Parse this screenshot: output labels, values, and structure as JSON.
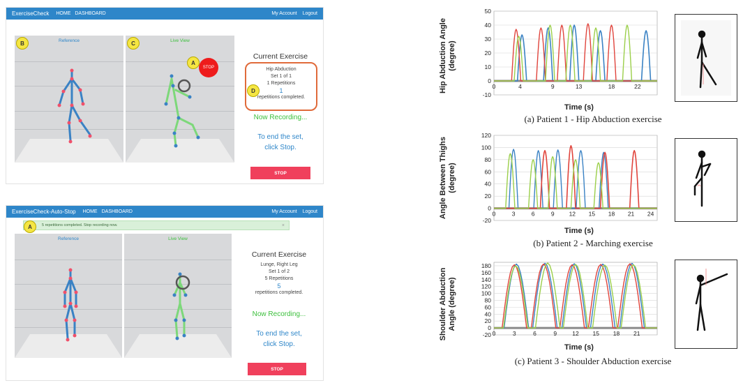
{
  "top_app": {
    "brand": "ExerciseCheck",
    "nav": [
      "HOME",
      "DASHBOARD"
    ],
    "right": [
      "My Account",
      "Logout"
    ],
    "panel_b_badge": "B",
    "panel_c_badge": "C",
    "reference_title": "Reference",
    "live_title": "Live View",
    "stop_circle_badge": "A",
    "stop_circle_label": "STOP",
    "info_badge": "D",
    "current_exercise": "Current Exercise",
    "exercise_name": "Hip Abduction",
    "set_text": "Set 1 of 1",
    "reps_text": "1 Repetitions",
    "count": "1",
    "completed_text": "repetitions completed.",
    "recording": "Now Recording...",
    "end_line1": "To end the set,",
    "end_line2": "click Stop.",
    "stop_button": "STOP"
  },
  "bottom_app": {
    "brand": "ExerciseCheck-Auto-Stop",
    "nav": [
      "HOME",
      "DASHBOARD"
    ],
    "right": [
      "My Account",
      "Logout"
    ],
    "alert_badge": "A",
    "alert_text": "5 repetitions completed. Stop recording now.",
    "alert_close": "×",
    "reference_title": "Reference",
    "live_title": "Live View",
    "current_exercise": "Current Exercise",
    "exercise_name": "Lunge, Right Leg",
    "set_text": "Set 1 of 2",
    "reps_text": "5 Repetitions",
    "count": "5",
    "completed_text": "repetitions completed.",
    "recording": "Now Recording...",
    "end_line1": "To end the set,",
    "end_line2": "click Stop.",
    "stop_button": "STOP"
  },
  "colors": {
    "blue": "#3a82c4",
    "red": "#e0443c",
    "green": "#9bcf4a"
  },
  "chart_data": [
    {
      "type": "line",
      "ylabel_line1": "Hip Abduction Angle",
      "ylabel_line2": "(degree)",
      "xlabel": "Time (s)",
      "caption": "(a) Patient 1 - Hip Abduction exercise",
      "ylim": [
        -10,
        50
      ],
      "yticks": [
        -10,
        0,
        10,
        20,
        30,
        40,
        50
      ],
      "xlim": [
        0,
        25
      ],
      "xticks": [
        0,
        4,
        9,
        13,
        18,
        22
      ],
      "grid": true,
      "series": [
        {
          "color": "#3a82c4",
          "peaks": [
            [
              4.3,
              33
            ],
            [
              8.3,
              38
            ],
            [
              12.3,
              40
            ],
            [
              16.3,
              36
            ],
            [
              23.3,
              36
            ]
          ],
          "width": 1.6
        },
        {
          "color": "#e0443c",
          "peaks": [
            [
              3.4,
              37
            ],
            [
              7.2,
              38
            ],
            [
              10.4,
              40
            ],
            [
              14.4,
              41
            ],
            [
              18.0,
              40
            ]
          ],
          "width": 1.4
        },
        {
          "color": "#9bcf4a",
          "peaks": [
            [
              3.8,
              32
            ],
            [
              8.6,
              40
            ],
            [
              11.7,
              40
            ],
            [
              15.6,
              38
            ],
            [
              20.4,
              40
            ]
          ],
          "width": 1.4
        }
      ]
    },
    {
      "type": "line",
      "ylabel_line1": "Angle Between Thighs",
      "ylabel_line2": "(degree)",
      "xlabel": "Time (s)",
      "caption": "(b) Patient 2 - Marching exercise",
      "ylim": [
        -20,
        120
      ],
      "yticks": [
        -20,
        0,
        20,
        40,
        60,
        80,
        100,
        120
      ],
      "xlim": [
        0,
        25
      ],
      "xticks": [
        0,
        3,
        6,
        9,
        12,
        15,
        18,
        21,
        24
      ],
      "grid": true,
      "series": [
        {
          "color": "#3a82c4",
          "peaks": [
            [
              3.0,
              97
            ],
            [
              6.8,
              95
            ],
            [
              9.8,
              96
            ],
            [
              13.3,
              95
            ],
            [
              16.8,
              92
            ]
          ],
          "width": 1.4
        },
        {
          "color": "#e0443c",
          "peaks": [
            [
              7.8,
              95
            ],
            [
              11.8,
              103
            ],
            [
              17.0,
              92
            ],
            [
              21.5,
              95
            ]
          ],
          "width": 1.6
        },
        {
          "color": "#9bcf4a",
          "peaks": [
            [
              2.5,
              90
            ],
            [
              6.0,
              80
            ],
            [
              9.0,
              85
            ],
            [
              12.5,
              80
            ],
            [
              16.0,
              75
            ]
          ],
          "width": 1.4
        }
      ]
    },
    {
      "type": "line",
      "ylabel_line1": "Shoulder Abduction",
      "ylabel_line2": "Angle (degree)",
      "xlabel": "Time (s)",
      "caption": "(c) Patient 3 - Shoulder Abduction exercise",
      "ylim": [
        -20,
        190
      ],
      "yticks": [
        -20,
        20,
        60,
        100,
        140,
        180
      ],
      "ytick_labels": [
        "-20",
        "0",
        "20",
        "40",
        "60",
        "80",
        "100",
        "120",
        "140",
        "160",
        "180"
      ],
      "yticks_all": [
        -20,
        0,
        20,
        40,
        60,
        80,
        100,
        120,
        140,
        160,
        180
      ],
      "xlim": [
        0,
        24
      ],
      "xticks": [
        0,
        3,
        6,
        9,
        12,
        15,
        18,
        21
      ],
      "grid": true,
      "series": [
        {
          "color": "#3a82c4",
          "peaks": [
            [
              3.3,
              185
            ],
            [
              7.5,
              187
            ],
            [
              11.8,
              186
            ],
            [
              16.0,
              185
            ],
            [
              20.3,
              187
            ]
          ],
          "width": 1.4
        },
        {
          "color": "#e0443c",
          "peaks": [
            [
              3.0,
              183
            ],
            [
              7.3,
              185
            ],
            [
              11.5,
              183
            ],
            [
              15.7,
              184
            ],
            [
              20.0,
              186
            ]
          ],
          "width": 1.4
        },
        {
          "color": "#9bcf4a",
          "peaks": [
            [
              3.2,
              180
            ],
            [
              7.9,
              188
            ],
            [
              12.0,
              184
            ],
            [
              16.3,
              182
            ],
            [
              20.5,
              183
            ]
          ],
          "width": 1.4
        }
      ]
    }
  ]
}
